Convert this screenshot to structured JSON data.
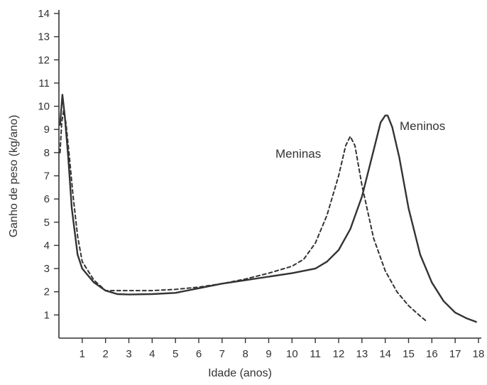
{
  "chart_data": {
    "type": "line",
    "xlabel": "Idade (anos)",
    "ylabel": "Ganho de peso (kg/ano)",
    "xlim": [
      0,
      18
    ],
    "ylim": [
      0,
      14
    ],
    "x_ticks": [
      1,
      2,
      3,
      4,
      5,
      6,
      7,
      8,
      9,
      10,
      11,
      12,
      13,
      14,
      15,
      16,
      17,
      18
    ],
    "y_ticks": [
      1,
      2,
      3,
      4,
      5,
      6,
      7,
      8,
      9,
      10,
      11,
      12,
      13,
      14
    ],
    "grid": false,
    "legend": "none",
    "series": [
      {
        "name": "Meninos",
        "style": "solid",
        "color": "#333333",
        "x": [
          0.05,
          0.15,
          0.25,
          0.4,
          0.55,
          0.8,
          1.0,
          1.5,
          2.0,
          2.5,
          3.0,
          4.0,
          5.0,
          6.0,
          7.0,
          8.0,
          9.0,
          10.0,
          11.0,
          11.5,
          12.0,
          12.5,
          13.0,
          13.5,
          13.8,
          14.0,
          14.1,
          14.3,
          14.6,
          15.0,
          15.5,
          16.0,
          16.5,
          17.0,
          17.5,
          17.9
        ],
        "y": [
          9.2,
          10.5,
          9.6,
          7.8,
          5.6,
          3.6,
          3.0,
          2.4,
          2.05,
          1.9,
          1.88,
          1.9,
          1.95,
          2.15,
          2.35,
          2.5,
          2.65,
          2.8,
          3.0,
          3.3,
          3.8,
          4.7,
          6.1,
          8.1,
          9.3,
          9.6,
          9.6,
          9.1,
          7.8,
          5.6,
          3.6,
          2.4,
          1.6,
          1.1,
          0.85,
          0.7
        ]
      },
      {
        "name": "Meninas",
        "style": "dashed",
        "color": "#333333",
        "x": [
          0.05,
          0.12,
          0.2,
          0.3,
          0.45,
          0.6,
          0.8,
          1.0,
          1.5,
          2.0,
          3.0,
          4.0,
          5.0,
          6.0,
          7.0,
          8.0,
          9.0,
          9.5,
          10.0,
          10.5,
          11.0,
          11.5,
          12.0,
          12.3,
          12.5,
          12.7,
          13.0,
          13.5,
          14.0,
          14.5,
          15.0,
          15.5,
          15.8
        ],
        "y": [
          8.0,
          9.3,
          9.8,
          9.3,
          7.8,
          6.2,
          4.4,
          3.3,
          2.5,
          2.05,
          2.05,
          2.05,
          2.1,
          2.2,
          2.35,
          2.55,
          2.8,
          2.95,
          3.1,
          3.4,
          4.1,
          5.3,
          7.0,
          8.3,
          8.7,
          8.3,
          6.6,
          4.3,
          2.9,
          2.0,
          1.4,
          0.95,
          0.7
        ]
      }
    ],
    "annotations": [
      {
        "text": "Meninos",
        "series": "Meninos"
      },
      {
        "text": "Meninas",
        "series": "Meninas"
      }
    ]
  }
}
